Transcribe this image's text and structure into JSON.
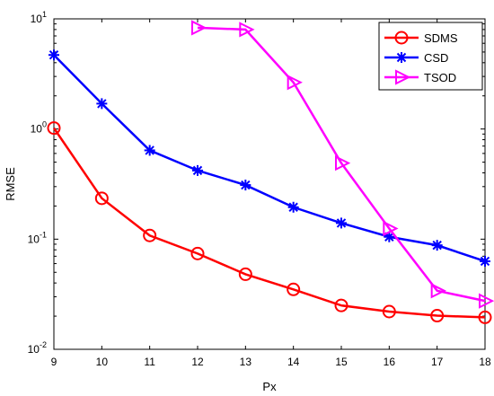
{
  "chart_data": {
    "type": "line",
    "title": "",
    "xlabel": "Px",
    "ylabel": "RMSE",
    "xlim": [
      9,
      18
    ],
    "ylim": [
      0.01,
      10
    ],
    "yscale": "log",
    "x_ticks": [
      "9",
      "10",
      "11",
      "12",
      "13",
      "14",
      "15",
      "16",
      "17",
      "18"
    ],
    "y_ticks": [
      {
        "base": "10",
        "exp": "-2"
      },
      {
        "base": "10",
        "exp": "-1"
      },
      {
        "base": "10",
        "exp": "0"
      },
      {
        "base": "10",
        "exp": "1"
      }
    ],
    "grid": false,
    "legend_position": "top-right",
    "series": [
      {
        "name": "SDMS",
        "color": "#ff0000",
        "marker": "circle",
        "x": [
          9,
          10,
          11,
          12,
          13,
          14,
          15,
          16,
          17,
          18
        ],
        "values": [
          1.02,
          0.235,
          0.108,
          0.074,
          0.048,
          0.035,
          0.025,
          0.022,
          0.0202,
          0.0195
        ]
      },
      {
        "name": "CSD",
        "color": "#0000ff",
        "marker": "asterisk",
        "x": [
          9,
          10,
          11,
          12,
          13,
          14,
          15,
          16,
          17,
          18
        ],
        "values": [
          4.7,
          1.7,
          0.64,
          0.42,
          0.31,
          0.195,
          0.14,
          0.105,
          0.088,
          0.063
        ]
      },
      {
        "name": "TSOD",
        "color": "#ff00ff",
        "marker": "triangle-right",
        "x": [
          12,
          13,
          14,
          15,
          16,
          17,
          18
        ],
        "values": [
          8.3,
          8.0,
          2.65,
          0.49,
          0.125,
          0.034,
          0.0275
        ]
      }
    ]
  }
}
